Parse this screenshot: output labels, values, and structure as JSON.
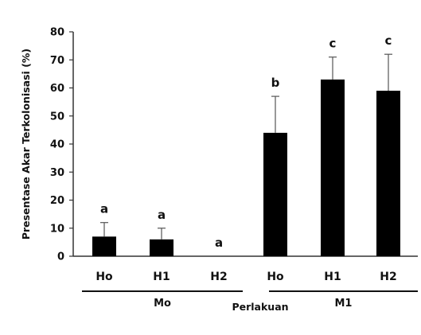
{
  "chart_data": {
    "type": "bar",
    "title": "",
    "xlabel": "Perlakuan",
    "ylabel": "Presentase Akar Terkolonisasi (%)",
    "ylim": [
      0,
      80
    ],
    "yticks": [
      "0",
      "10",
      "20",
      "30",
      "40",
      "50",
      "60",
      "70",
      "80"
    ],
    "categories": [
      "Ho",
      "H1",
      "H2",
      "Ho",
      "H1",
      "H2"
    ],
    "groups": [
      {
        "label": "Mo",
        "categories": [
          0,
          1,
          2
        ]
      },
      {
        "label": "M1",
        "categories": [
          3,
          4,
          5
        ]
      }
    ],
    "values": [
      7,
      6,
      0,
      44,
      63,
      59
    ],
    "errors": [
      5,
      4,
      0,
      13,
      8,
      13
    ],
    "significance": [
      "a",
      "a",
      "a",
      "b",
      "c",
      "c"
    ],
    "grid": false,
    "colors": {
      "bar": "#000000",
      "axis": "#333333"
    }
  }
}
